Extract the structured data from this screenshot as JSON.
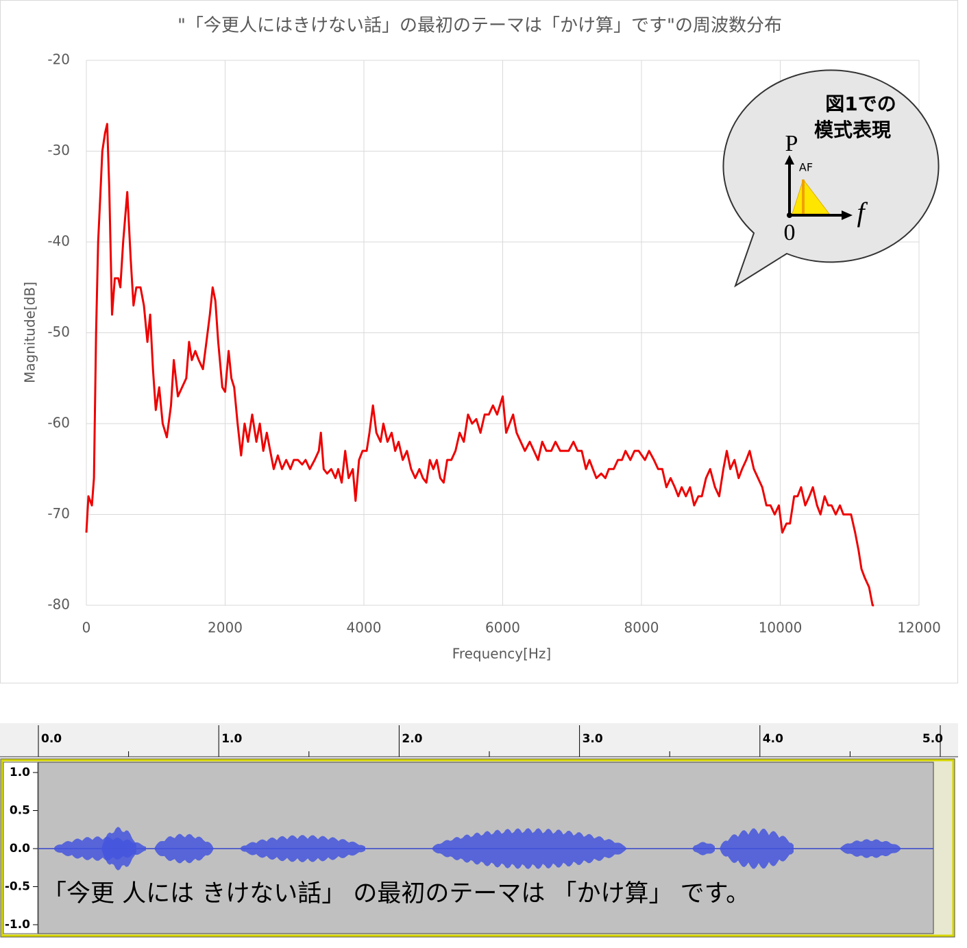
{
  "chart_data": [
    {
      "type": "line",
      "title": "\"「今更人にはきけない話」の最初のテーマは「かけ算」です\"の周波数分布",
      "x_label": "Frequency[Hz]",
      "y_label": "Magnitude[dB]",
      "color": "#ee0000",
      "xlim": [
        0,
        12000
      ],
      "xticks": [
        0,
        2000,
        4000,
        6000,
        8000,
        10000,
        12000
      ],
      "ylim": [
        -80,
        -20
      ],
      "yticks": [
        -20,
        -30,
        -40,
        -50,
        -60,
        -70,
        -80
      ],
      "grid": true,
      "callout": [
        "図1での",
        "模式表現"
      ],
      "diagram_labels": [
        "P",
        "AF",
        "f",
        "0"
      ],
      "x": [
        0,
        30,
        80,
        110,
        140,
        170,
        200,
        230,
        270,
        300,
        330,
        370,
        410,
        460,
        490,
        530,
        590,
        640,
        680,
        720,
        780,
        830,
        880,
        920,
        960,
        1000,
        1050,
        1100,
        1160,
        1220,
        1260,
        1320,
        1380,
        1440,
        1480,
        1520,
        1570,
        1620,
        1680,
        1730,
        1780,
        1820,
        1860,
        1900,
        1960,
        2000,
        2050,
        2090,
        2130,
        2180,
        2230,
        2280,
        2330,
        2390,
        2450,
        2500,
        2550,
        2600,
        2650,
        2700,
        2760,
        2820,
        2880,
        2940,
        2990,
        3050,
        3110,
        3160,
        3220,
        3290,
        3350,
        3380,
        3420,
        3470,
        3530,
        3590,
        3630,
        3680,
        3730,
        3780,
        3840,
        3880,
        3930,
        3980,
        4040,
        4080,
        4130,
        4180,
        4240,
        4280,
        4340,
        4400,
        4450,
        4500,
        4560,
        4620,
        4680,
        4740,
        4800,
        4850,
        4900,
        4950,
        5000,
        5050,
        5100,
        5150,
        5200,
        5260,
        5320,
        5380,
        5440,
        5500,
        5560,
        5620,
        5680,
        5740,
        5800,
        5860,
        5920,
        6000,
        6050,
        6100,
        6150,
        6200,
        6260,
        6320,
        6390,
        6450,
        6510,
        6570,
        6630,
        6700,
        6760,
        6830,
        6890,
        6950,
        7020,
        7080,
        7140,
        7200,
        7250,
        7300,
        7350,
        7420,
        7480,
        7530,
        7600,
        7660,
        7720,
        7770,
        7840,
        7900,
        7960,
        8050,
        8110,
        8180,
        8240,
        8300,
        8360,
        8420,
        8480,
        8530,
        8580,
        8640,
        8700,
        8760,
        8820,
        8870,
        8930,
        8990,
        9060,
        9120,
        9180,
        9230,
        9280,
        9340,
        9400,
        9450,
        9510,
        9560,
        9620,
        9680,
        9740,
        9800,
        9860,
        9920,
        9980,
        10030,
        10090,
        10140,
        10200,
        10250,
        10300,
        10360,
        10420,
        10470,
        10530,
        10580,
        10640,
        10690,
        10740,
        10800,
        10860,
        10910,
        10960,
        11020,
        11080,
        11130,
        11170,
        11220,
        11280,
        11330,
        11350
      ],
      "values": [
        -72,
        -68,
        -69,
        -66,
        -50,
        -40,
        -35,
        -30,
        -28,
        -27,
        -34,
        -48,
        -44,
        -44,
        -45,
        -40,
        -34.5,
        -42,
        -47,
        -45,
        -45,
        -47,
        -51,
        -48,
        -54,
        -58.5,
        -56,
        -60,
        -61.5,
        -58,
        -53,
        -57,
        -56,
        -55,
        -51,
        -53,
        -52,
        -53,
        -54,
        -51,
        -48,
        -45,
        -46.5,
        -51,
        -56,
        -56.5,
        -52,
        -55,
        -56,
        -60,
        -63.5,
        -60,
        -62,
        -59,
        -62,
        -60,
        -63,
        -61,
        -63,
        -65,
        -63.5,
        -65,
        -64,
        -65,
        -64,
        -64,
        -64.5,
        -64,
        -65,
        -64,
        -63,
        -61,
        -65,
        -65.5,
        -65,
        -66,
        -65,
        -66.5,
        -63,
        -66,
        -65,
        -68.5,
        -64,
        -63,
        -63,
        -61,
        -58,
        -61,
        -62,
        -60,
        -62,
        -61,
        -63,
        -62,
        -64,
        -63,
        -65,
        -66,
        -65,
        -66,
        -66.5,
        -64,
        -65,
        -64,
        -66,
        -66.5,
        -64,
        -64,
        -63,
        -61,
        -62,
        -59,
        -60,
        -59.5,
        -61,
        -59,
        -59,
        -58,
        -59,
        -57,
        -61,
        -60,
        -59,
        -61,
        -62,
        -63,
        -62,
        -63,
        -64,
        -62,
        -63,
        -63,
        -62,
        -63,
        -63,
        -63,
        -62,
        -63,
        -63,
        -65,
        -64,
        -65,
        -66,
        -65.5,
        -66,
        -65,
        -65,
        -64,
        -64,
        -63,
        -64,
        -63,
        -63,
        -64,
        -63,
        -64,
        -65,
        -65,
        -67,
        -66,
        -67,
        -68,
        -67,
        -68,
        -67,
        -69,
        -68,
        -68,
        -66,
        -65,
        -67,
        -68,
        -65,
        -63,
        -65,
        -64,
        -66,
        -65,
        -64,
        -63,
        -65,
        -66,
        -67,
        -69,
        -69,
        -70,
        -69,
        -72,
        -71,
        -71,
        -68,
        -68,
        -67,
        -69,
        -68,
        -67,
        -69,
        -70,
        -68,
        -69,
        -69,
        -70,
        -69,
        -70,
        -70,
        -70,
        -72,
        -74,
        -76,
        -77,
        -78,
        -80,
        -80
      ]
    },
    {
      "type": "waveform",
      "caption": "「今更 人には きけない話」 の最初のテーマは 「かけ算」 です。",
      "xlim": [
        0,
        5
      ],
      "xticks": [
        {
          "value": 0,
          "label": "0.0"
        },
        {
          "value": 1,
          "label": "1.0"
        },
        {
          "value": 2,
          "label": "2.0"
        },
        {
          "value": 3,
          "label": "3.0"
        },
        {
          "value": 4,
          "label": "4.0"
        },
        {
          "value": 5,
          "label": "5.0"
        }
      ],
      "ylim": [
        -1,
        1
      ],
      "yticks": [
        {
          "value": 1,
          "label": "1.0"
        },
        {
          "value": 0.5,
          "label": "0.5"
        },
        {
          "value": 0,
          "label": "0.0"
        },
        {
          "value": -0.5,
          "label": "-0.5"
        },
        {
          "value": -1,
          "label": "-1.0"
        }
      ]
    }
  ]
}
